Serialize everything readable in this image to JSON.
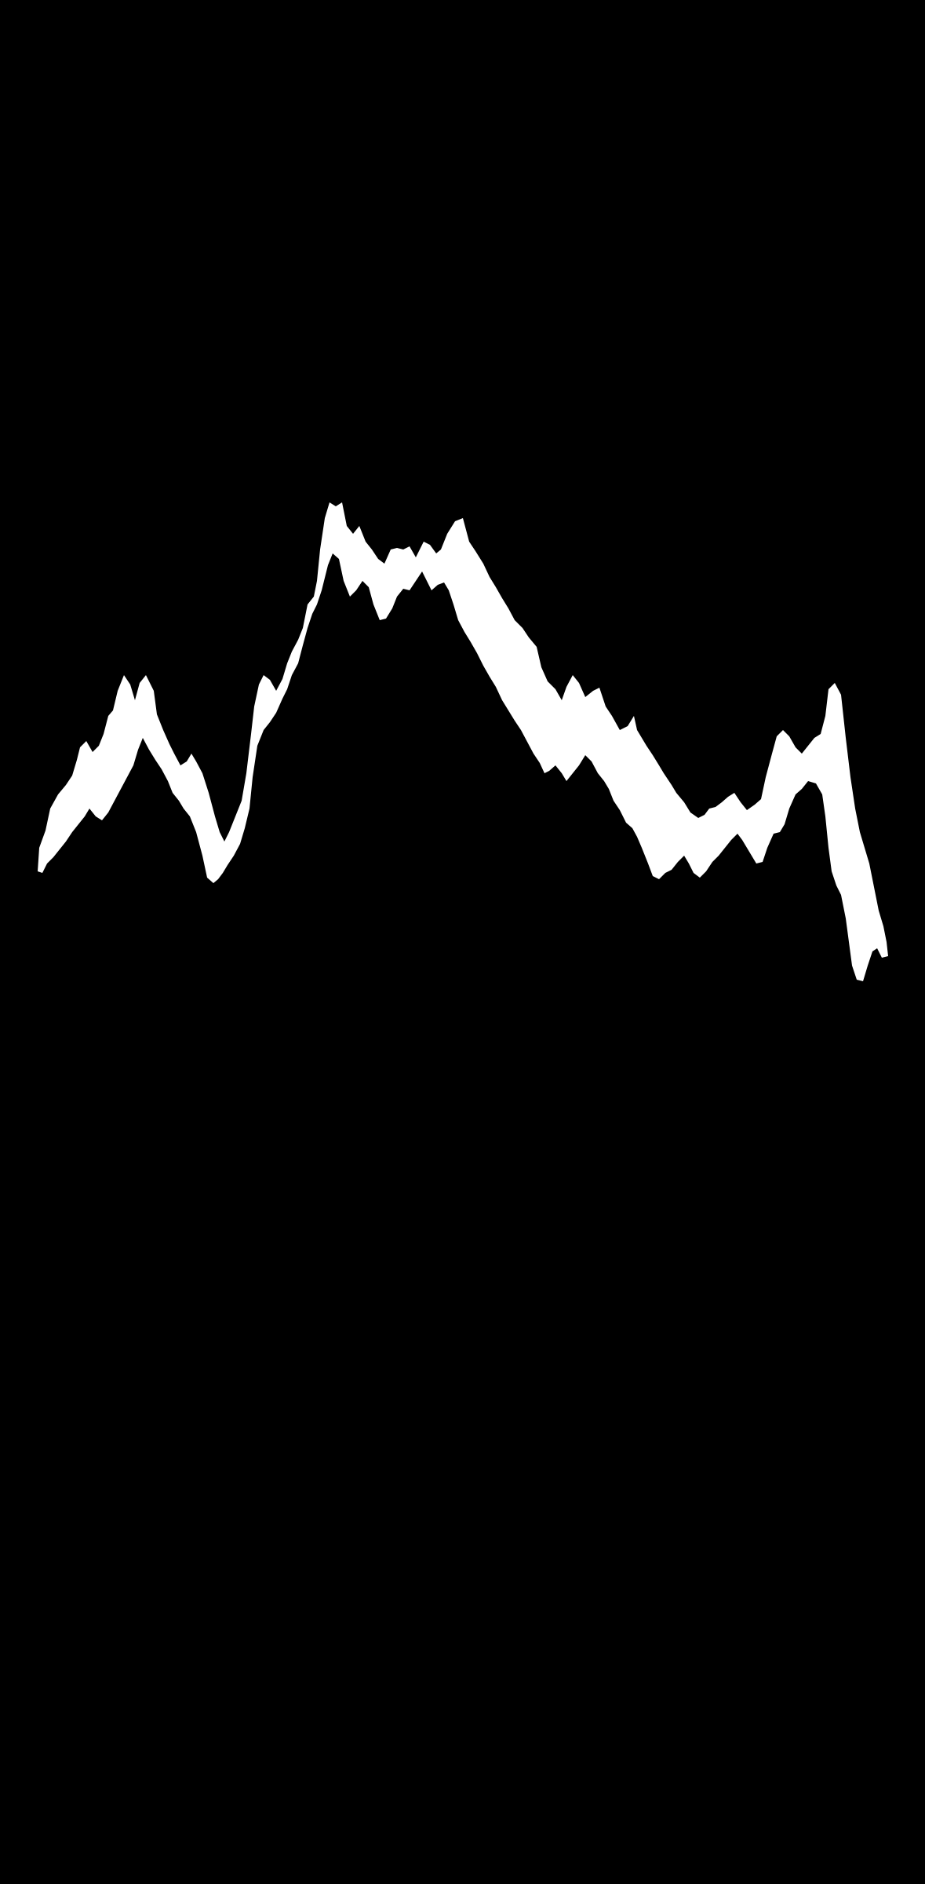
{
  "screen": {
    "background_color": "#000000"
  },
  "waveform": {
    "stroke_color": "#FFFFFF",
    "shape": "wide-band-trace"
  }
}
